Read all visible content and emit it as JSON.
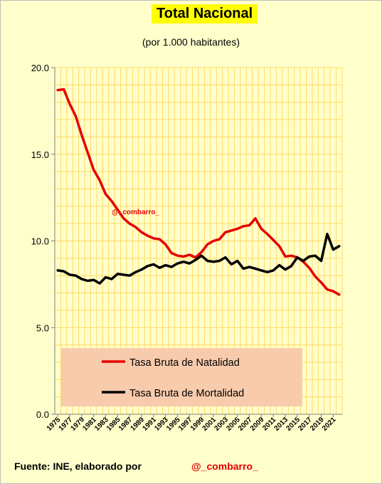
{
  "header": {
    "title": "Total Nacional",
    "subtitle": "(por 1.000 habitantes)"
  },
  "footer": {
    "source": "Fuente: INE, elaborado por",
    "handle": "@_combarro_"
  },
  "watermark": "@_combarro_",
  "colors": {
    "background": "#ffffcc",
    "grid": "#ffd966",
    "legend_box": "#f8cbad",
    "natalidad": "#e60000",
    "mortalidad": "#000000"
  },
  "chart_data": {
    "type": "line",
    "title": "Total Nacional",
    "subtitle": "(por 1.000 habitantes)",
    "xlabel": "",
    "ylabel": "",
    "ylim": [
      0,
      20
    ],
    "yticks": [
      "0.0",
      "5.0",
      "10.0",
      "15.0",
      "20.0"
    ],
    "xtick_labels": [
      "1975",
      "1977",
      "1979",
      "1981",
      "1983",
      "1985",
      "1987",
      "1989",
      "1991",
      "1993",
      "1995",
      "1997",
      "1999",
      "2001",
      "2003",
      "2005",
      "2007",
      "2009",
      "2011",
      "2013",
      "2015",
      "2017",
      "2019",
      "2021"
    ],
    "grid": true,
    "legend_position": "bottom-left",
    "x": [
      1975,
      1976,
      1977,
      1978,
      1979,
      1980,
      1981,
      1982,
      1983,
      1984,
      1985,
      1986,
      1987,
      1988,
      1989,
      1990,
      1991,
      1992,
      1993,
      1994,
      1995,
      1996,
      1997,
      1998,
      1999,
      2000,
      2001,
      2002,
      2003,
      2004,
      2005,
      2006,
      2007,
      2008,
      2009,
      2010,
      2011,
      2012,
      2013,
      2014,
      2015,
      2016,
      2017,
      2018,
      2019,
      2020,
      2021,
      2022
    ],
    "series": [
      {
        "name": "Tasa Bruta de Natalidad",
        "values": [
          18.7,
          18.75,
          17.9,
          17.2,
          16.1,
          15.1,
          14.1,
          13.5,
          12.7,
          12.3,
          11.8,
          11.3,
          11.0,
          10.8,
          10.5,
          10.3,
          10.15,
          10.1,
          9.8,
          9.3,
          9.15,
          9.1,
          9.2,
          9.05,
          9.35,
          9.8,
          10.0,
          10.1,
          10.5,
          10.6,
          10.7,
          10.85,
          10.9,
          11.3,
          10.7,
          10.4,
          10.05,
          9.7,
          9.1,
          9.15,
          9.05,
          8.8,
          8.45,
          7.95,
          7.6,
          7.2,
          7.1,
          6.9
        ]
      },
      {
        "name": "Tasa Bruta de Mortalidad",
        "values": [
          8.3,
          8.25,
          8.05,
          8.0,
          7.8,
          7.7,
          7.75,
          7.55,
          7.9,
          7.8,
          8.1,
          8.05,
          8.0,
          8.2,
          8.35,
          8.55,
          8.65,
          8.45,
          8.6,
          8.5,
          8.7,
          8.8,
          8.7,
          8.9,
          9.15,
          8.85,
          8.8,
          8.85,
          9.05,
          8.65,
          8.85,
          8.4,
          8.5,
          8.4,
          8.3,
          8.2,
          8.3,
          8.6,
          8.35,
          8.55,
          9.05,
          8.85,
          9.1,
          9.15,
          8.85,
          10.4,
          9.5,
          9.7
        ]
      }
    ]
  }
}
